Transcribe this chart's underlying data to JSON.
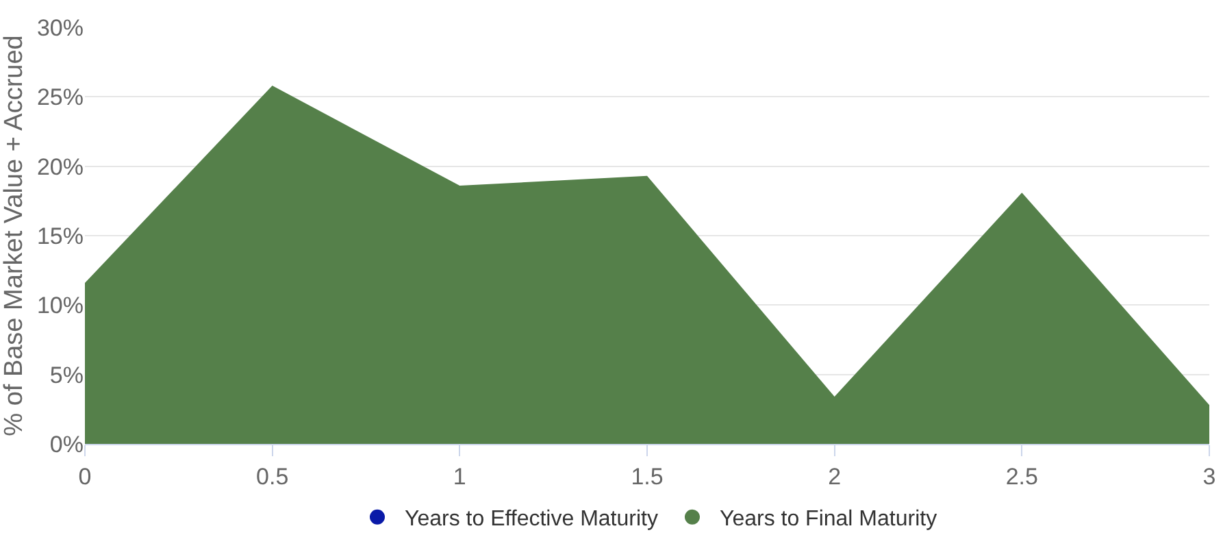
{
  "chart_data": {
    "type": "area",
    "ylabel": "% of Base Market Value + Accrued",
    "x": [
      0,
      0.5,
      1,
      1.5,
      2,
      2.5,
      3
    ],
    "series": [
      {
        "name": "Years to Effective Maturity",
        "color": "#0a1aa8",
        "values": [
          null,
          null,
          null,
          null,
          null,
          null,
          null
        ]
      },
      {
        "name": "Years to Final Maturity",
        "color": "#55804a",
        "values": [
          11.6,
          25.8,
          18.6,
          19.3,
          3.4,
          18.1,
          2.8
        ]
      }
    ],
    "xlim": [
      0,
      3
    ],
    "xticks": [
      0,
      0.5,
      1,
      1.5,
      2,
      2.5,
      3
    ],
    "ylim": [
      0,
      30
    ],
    "yticks": [
      {
        "value": 0,
        "label": "0%"
      },
      {
        "value": 5,
        "label": "5%"
      },
      {
        "value": 10,
        "label": "10%"
      },
      {
        "value": 15,
        "label": "15%"
      },
      {
        "value": 20,
        "label": "20%"
      },
      {
        "value": 25,
        "label": "25%"
      },
      {
        "value": 30,
        "label": "30%"
      }
    ],
    "grid": "y",
    "legend": "bottom"
  }
}
